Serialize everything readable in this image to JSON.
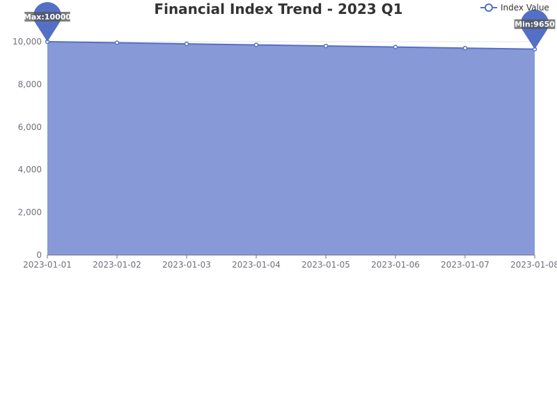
{
  "chart_data": {
    "type": "area",
    "title": "Financial Index Trend - 2023 Q1",
    "xlabel": "",
    "ylabel": "",
    "categories": [
      "2023-01-01",
      "2023-01-02",
      "2023-01-03",
      "2023-01-04",
      "2023-01-05",
      "2023-01-06",
      "2023-01-07",
      "2023-01-08"
    ],
    "series": [
      {
        "name": "Index Value",
        "values": [
          10000,
          9950,
          9900,
          9850,
          9800,
          9750,
          9700,
          9650
        ]
      }
    ],
    "ylim": [
      0,
      10000
    ],
    "yticks": [
      0,
      2000,
      4000,
      6000,
      8000,
      10000
    ],
    "ytick_labels": [
      "0",
      "2,000",
      "4,000",
      "6,000",
      "8,000",
      "10,000"
    ],
    "grid": true,
    "legend_position": "top-right",
    "markers": {
      "max_label": "Max:10000",
      "min_label": "Min:9650"
    },
    "colors": {
      "line": "#5470c6",
      "area": "#8899d8",
      "grid": "#e0e6f1",
      "axis": "#6e7079",
      "title": "#333333"
    }
  }
}
